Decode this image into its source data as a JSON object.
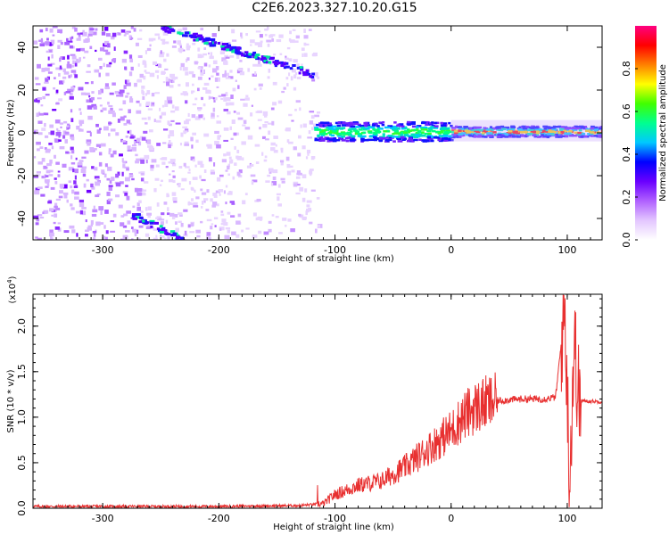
{
  "title": "C2E6.2023.327.10.20.G15",
  "chart_data": [
    {
      "type": "heatmap",
      "xlabel": "Height of straight line (km)",
      "ylabel": "Frequency (Hz)",
      "xlim": [
        -360,
        130
      ],
      "ylim": [
        -50,
        50
      ],
      "xticks": [
        -300,
        -200,
        -100,
        0,
        100
      ],
      "yticks": [
        -40,
        -20,
        0,
        20,
        40
      ],
      "colorbar": {
        "label": "Normalized spectral amplitude",
        "range": [
          0,
          1
        ],
        "ticks": [
          "0.0",
          "0.2",
          "0.4",
          "0.6",
          "0.8"
        ],
        "colormap": [
          "#ffffff",
          "#e3c6ff",
          "#b060ff",
          "#6a00ff",
          "#0000ff",
          "#00c8ff",
          "#00ff90",
          "#40ff00",
          "#ffff00",
          "#ff8000",
          "#ff0000",
          "#ff0080"
        ]
      },
      "features": {
        "noise_region_x": [
          -360,
          -115
        ],
        "upper_streak": {
          "x": [
            -250,
            -120
          ],
          "y": [
            50,
            28
          ]
        },
        "lower_streak": {
          "x": [
            -275,
            -230
          ],
          "y": [
            -38,
            -50
          ]
        },
        "signal_band": {
          "x": [
            -118,
            130
          ],
          "y_center": 1,
          "strongest_from_x": 0
        }
      }
    },
    {
      "type": "line",
      "xlabel": "Height of straight line (km)",
      "ylabel": "SNR (10 * v/v)",
      "yscale_label": "(x10",
      "yscale_exp": "4",
      "yscale_close": ")",
      "xlim": [
        -360,
        130
      ],
      "ylim": [
        0,
        2.35
      ],
      "xticks": [
        -300,
        -200,
        -100,
        0,
        100
      ],
      "yticks": [
        "0.0",
        "0.5",
        "1.0",
        "1.5",
        "2.0"
      ],
      "series": [
        {
          "color": "#e83030",
          "x": [
            -360,
            -300,
            -200,
            -130,
            -110,
            -100,
            -80,
            -60,
            -40,
            -20,
            0,
            10,
            20,
            30,
            40,
            60,
            80,
            90,
            98,
            102,
            106,
            110,
            130
          ],
          "y": [
            0.02,
            0.02,
            0.02,
            0.03,
            0.05,
            0.15,
            0.25,
            0.3,
            0.45,
            0.65,
            0.85,
            1.0,
            1.1,
            1.15,
            1.18,
            1.2,
            1.2,
            1.22,
            2.2,
            0.3,
            1.85,
            1.18,
            1.17
          ]
        }
      ]
    }
  ]
}
